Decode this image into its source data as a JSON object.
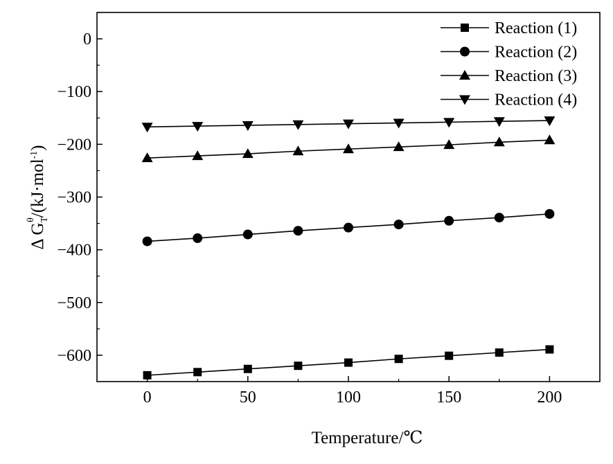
{
  "chart_data": {
    "type": "line",
    "title": "",
    "xlabel": "Temperature/℃",
    "ylabel_parts": {
      "prefix": "Δ G",
      "sup": "θ",
      "sub": "T",
      "unit": "/(kJ·mol",
      "unit_sup": "-1",
      "unit_close": ")"
    },
    "xlim": [
      -25,
      225
    ],
    "ylim": [
      -650,
      50
    ],
    "xticks": [
      0,
      50,
      100,
      150,
      200
    ],
    "yticks": [
      0,
      -100,
      -200,
      -300,
      -400,
      -500,
      -600
    ],
    "xtick_labels": [
      "0",
      "50",
      "100",
      "150",
      "200"
    ],
    "ytick_labels": [
      "0",
      "-100",
      "-200",
      "-300",
      "-400",
      "-500",
      "-600"
    ],
    "grid": false,
    "legend_position": "top-right",
    "x": [
      0,
      25,
      50,
      75,
      100,
      125,
      150,
      175,
      200
    ],
    "series": [
      {
        "name": "Reaction (1)",
        "marker": "square",
        "values": [
          -638,
          -632,
          -626,
          -620,
          -614,
          -607,
          -601,
          -595,
          -589
        ]
      },
      {
        "name": "Reaction (2)",
        "marker": "circle",
        "values": [
          -384,
          -378,
          -371,
          -364,
          -358,
          -352,
          -345,
          -339,
          -332
        ]
      },
      {
        "name": "Reaction (3)",
        "marker": "triangle-up",
        "values": [
          -226,
          -222,
          -218,
          -213,
          -209,
          -205,
          -201,
          -196,
          -192
        ]
      },
      {
        "name": "Reaction (4)",
        "marker": "triangle-down",
        "values": [
          -167,
          -165.5,
          -164,
          -162.5,
          -161,
          -159.5,
          -158,
          -156.5,
          -155
        ]
      }
    ],
    "colors": {
      "line": "#000000",
      "marker": "#000000"
    }
  }
}
